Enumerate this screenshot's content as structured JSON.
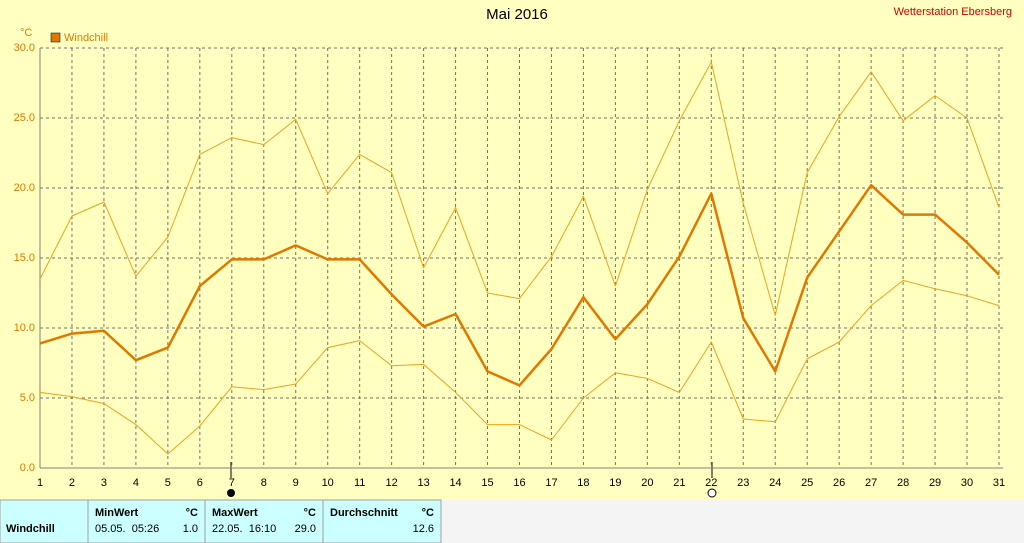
{
  "chart_data": {
    "type": "line",
    "title": "Mai 2016",
    "station": "Wetterstation Ebersberg",
    "y_unit": "°C",
    "categories": [
      "1",
      "2",
      "3",
      "4",
      "5",
      "6",
      "7",
      "8",
      "9",
      "10",
      "11",
      "12",
      "13",
      "14",
      "15",
      "16",
      "17",
      "18",
      "19",
      "20",
      "21",
      "22",
      "23",
      "24",
      "25",
      "26",
      "27",
      "28",
      "29",
      "30",
      "31"
    ],
    "series": [
      {
        "name": "Windchill",
        "color": "#e07800",
        "width": 2.5,
        "values": [
          8.9,
          9.6,
          9.8,
          7.7,
          8.6,
          13.0,
          14.9,
          14.9,
          15.9,
          14.9,
          14.9,
          12.4,
          10.1,
          11.0,
          6.9,
          5.9,
          8.5,
          12.2,
          9.2,
          11.7,
          15.1,
          19.6,
          10.7,
          6.9,
          13.6,
          16.9,
          20.2,
          18.1,
          18.1,
          16.1,
          13.8
        ]
      },
      {
        "color": "#f0a020",
        "width": 1,
        "values": [
          13.5,
          18.0,
          19.0,
          13.7,
          16.5,
          22.4,
          23.6,
          23.1,
          24.9,
          19.6,
          22.4,
          21.1,
          14.3,
          18.6,
          12.5,
          12.1,
          15.1,
          19.4,
          13.0,
          19.9,
          24.8,
          29.0,
          18.9,
          10.9,
          21.1,
          25.1,
          28.3,
          24.8,
          26.6,
          25.0,
          18.6
        ]
      },
      {
        "color": "#f0a020",
        "width": 1,
        "values": [
          5.4,
          5.1,
          4.6,
          3.1,
          1.0,
          3.0,
          5.8,
          5.6,
          6.0,
          8.6,
          9.1,
          7.3,
          7.4,
          5.4,
          3.1,
          3.1,
          2.0,
          5.0,
          6.8,
          6.4,
          5.4,
          9.0,
          3.5,
          3.3,
          7.8,
          9.0,
          11.6,
          13.4,
          12.8,
          12.3,
          11.6
        ]
      }
    ],
    "ylim": [
      0,
      30
    ],
    "yticks": [
      {
        "value": 0,
        "label": "0.0"
      },
      {
        "value": 5,
        "label": "5.0"
      },
      {
        "value": 10,
        "label": "10.0"
      },
      {
        "value": 15,
        "label": "15.0"
      },
      {
        "value": 20,
        "label": "20.0"
      },
      {
        "value": 25,
        "label": "25.0"
      },
      {
        "value": 30,
        "label": "30.0"
      }
    ],
    "grid": true
  },
  "summary_table": {
    "row_label": "Windchill",
    "columns": [
      {
        "header": "MinWert",
        "unit": "°C",
        "time": "05.05.  05:26",
        "value": "1.0"
      },
      {
        "header": "MaxWert",
        "unit": "°C",
        "time": "22.05.  16:10",
        "value": "29.0"
      },
      {
        "header": "Durchschnitt",
        "unit": "°C",
        "value": "12.6"
      }
    ]
  }
}
